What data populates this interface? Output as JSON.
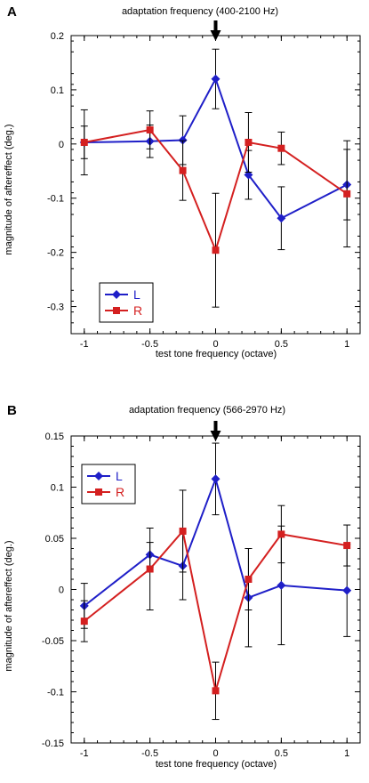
{
  "chart_data": [
    {
      "type": "line",
      "panel": "A",
      "title": "adaptation frequency (400-2100 Hz)",
      "xlabel": "test tone frequency (octave)",
      "ylabel": "magnitude of aftereffect (deg.)",
      "xlim": [
        -1.1,
        1.1
      ],
      "ylim": [
        -0.35,
        0.2
      ],
      "xticks": [
        -1,
        -0.5,
        0,
        0.5,
        1
      ],
      "xtick_labels": [
        "-1",
        "-0.5",
        "0",
        "0.5",
        "1"
      ],
      "yticks": [
        0.2,
        0.1,
        0,
        -0.1,
        -0.2,
        -0.3
      ],
      "ytick_labels": [
        "0.2",
        "0.1",
        "0",
        "-0.1",
        "-0.2",
        "-0.3"
      ],
      "arrow_at_x": 0,
      "legend_position": "bottom-left",
      "series": [
        {
          "name": "L",
          "color": "#1f1fc8",
          "marker": "diamond",
          "x": [
            -1,
            -0.5,
            -0.25,
            0,
            0.25,
            0.5,
            1
          ],
          "y": [
            0.003,
            0.005,
            0.007,
            0.12,
            -0.057,
            -0.137,
            -0.075
          ],
          "err": [
            0.03,
            0.03,
            0.045,
            0.055,
            0.045,
            0.058,
            0.065
          ]
        },
        {
          "name": "R",
          "color": "#d42020",
          "marker": "square",
          "x": [
            -1,
            -0.5,
            -0.25,
            0,
            0.25,
            0.5,
            1
          ],
          "y": [
            0.003,
            0.026,
            -0.049,
            -0.196,
            0.003,
            -0.008,
            -0.092
          ],
          "err": [
            0.06,
            0.035,
            0.055,
            0.105,
            0.055,
            0.03,
            0.098
          ]
        }
      ]
    },
    {
      "type": "line",
      "panel": "B",
      "title": "adaptation frequency (566-2970 Hz)",
      "xlabel": "test tone frequency (octave)",
      "ylabel": "magnitude of aftereffect (deg.)",
      "xlim": [
        -1.1,
        1.1
      ],
      "ylim": [
        -0.15,
        0.15
      ],
      "xticks": [
        -1,
        -0.5,
        0,
        0.5,
        1
      ],
      "xtick_labels": [
        "-1",
        "-0.5",
        "0",
        "0.5",
        "1"
      ],
      "yticks": [
        0.15,
        0.1,
        0.05,
        0,
        -0.05,
        -0.1,
        -0.15
      ],
      "ytick_labels": [
        "0.15",
        "0.1",
        "0.05",
        "0",
        "-0.05",
        "-0.1",
        "-0.15"
      ],
      "arrow_at_x": 0,
      "legend_position": "top-left",
      "series": [
        {
          "name": "L",
          "color": "#1f1fc8",
          "marker": "diamond",
          "x": [
            -1,
            -0.5,
            -0.25,
            0,
            0.25,
            0.5,
            1
          ],
          "y": [
            -0.016,
            0.034,
            0.023,
            0.108,
            -0.008,
            0.004,
            -0.001
          ],
          "err": [
            0.022,
            0.012,
            0.033,
            0.035,
            0.048,
            0.058,
            0.045
          ]
        },
        {
          "name": "R",
          "color": "#d42020",
          "marker": "square",
          "x": [
            -1,
            -0.5,
            -0.25,
            0,
            0.25,
            0.5,
            1
          ],
          "y": [
            -0.031,
            0.02,
            0.057,
            -0.099,
            0.01,
            0.054,
            0.043
          ],
          "err": [
            0.02,
            0.04,
            0.04,
            0.028,
            0.03,
            0.028,
            0.02
          ]
        }
      ]
    }
  ]
}
